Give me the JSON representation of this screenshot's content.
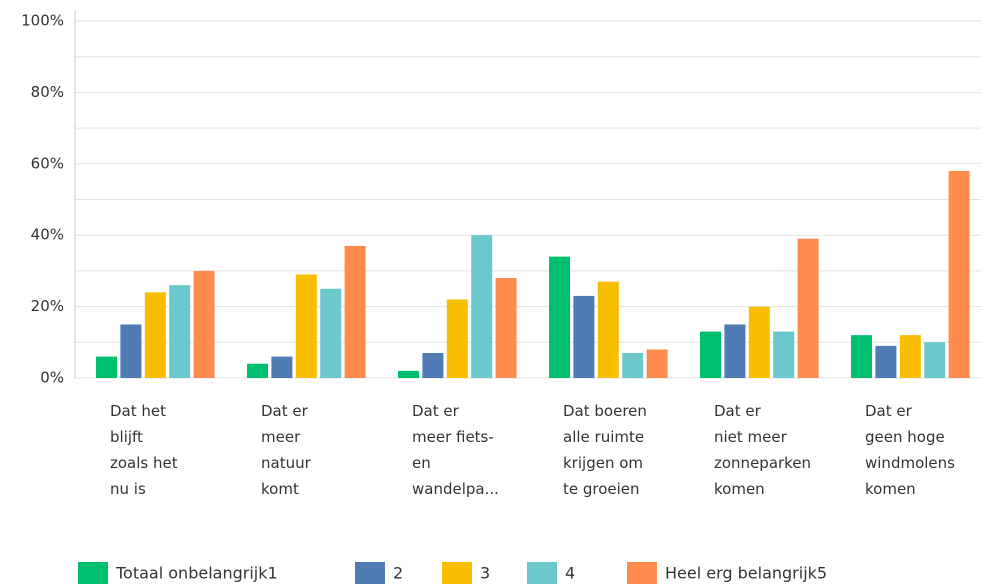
{
  "chart_data": {
    "type": "bar",
    "categories": [
      [
        "Dat het",
        "blijft",
        "zoals het",
        "nu is"
      ],
      [
        "Dat er",
        "meer",
        "natuur",
        "komt"
      ],
      [
        "Dat er",
        "meer fiets-",
        "en",
        "wandelpa..."
      ],
      [
        "Dat boeren",
        "alle ruimte",
        "krijgen om",
        "te groeien"
      ],
      [
        "Dat er",
        "niet meer",
        "zonneparken",
        "komen"
      ],
      [
        "Dat er",
        "geen hoge",
        "windmolens",
        "komen"
      ]
    ],
    "series": [
      {
        "name": "Totaal onbelangrijk1",
        "color": "#00bf6f",
        "values": [
          6,
          4,
          2,
          34,
          13,
          12
        ]
      },
      {
        "name": "2",
        "color": "#507cb6",
        "values": [
          15,
          6,
          7,
          23,
          15,
          9
        ]
      },
      {
        "name": "3",
        "color": "#f9be00",
        "values": [
          24,
          29,
          22,
          27,
          20,
          12
        ]
      },
      {
        "name": "4",
        "color": "#6bc8cd",
        "values": [
          26,
          25,
          40,
          7,
          13,
          10
        ]
      },
      {
        "name": "Heel erg belangrijk5",
        "color": "#ff8b4f",
        "values": [
          30,
          37,
          28,
          8,
          39,
          58
        ]
      }
    ],
    "ylim": [
      0,
      100
    ],
    "yticks": [
      {
        "value": 0,
        "label": "0%"
      },
      {
        "value": 20,
        "label": "20%"
      },
      {
        "value": 40,
        "label": "40%"
      },
      {
        "value": 60,
        "label": "60%"
      },
      {
        "value": 80,
        "label": "80%"
      },
      {
        "value": 100,
        "label": "100%"
      }
    ],
    "minor_gridlines": [
      10,
      30,
      50,
      70,
      90
    ],
    "grid": true,
    "legend": "bottom"
  }
}
